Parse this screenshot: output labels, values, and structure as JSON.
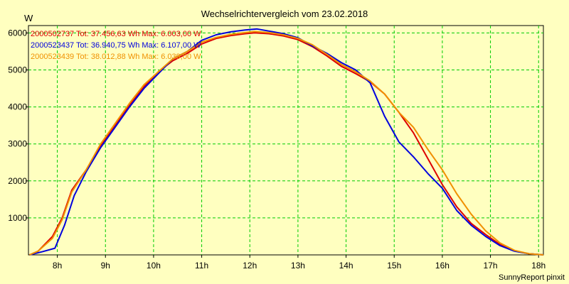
{
  "chart_data": {
    "type": "line",
    "title": "Wechselrichtervergleich vom 23.02.2018",
    "ylabel": "W",
    "xlabel": "",
    "credit": "SunnyReport pinxit",
    "xlim": [
      7.4,
      18.1
    ],
    "ylim": [
      0,
      6200
    ],
    "x_ticks": [
      8,
      9,
      10,
      11,
      12,
      13,
      14,
      15,
      16,
      17,
      18
    ],
    "x_tick_labels": [
      "8h",
      "9h",
      "10h",
      "11h",
      "12h",
      "13h",
      "14h",
      "15h",
      "16h",
      "17h",
      "18h"
    ],
    "y_ticks": [
      1000,
      2000,
      3000,
      4000,
      5000,
      6000
    ],
    "y_tick_labels": [
      "1000",
      "2000",
      "3000",
      "4000",
      "5000",
      "6000"
    ],
    "grid": true,
    "legend_position": "top-left",
    "colors": {
      "background": "#ffffc0",
      "grid": "#00cc00",
      "axis": "#000000"
    },
    "series": [
      {
        "name": "2000502737 Tot: 37.456,63 Wh Max: 6.003,00 W",
        "color": "#dd0000",
        "x": [
          7.42,
          7.6,
          7.9,
          8.1,
          8.3,
          8.6,
          8.9,
          9.2,
          9.5,
          9.8,
          10.1,
          10.4,
          10.7,
          11.0,
          11.3,
          11.6,
          11.9,
          12.1,
          12.4,
          12.7,
          13.0,
          13.3,
          13.6,
          13.9,
          14.2,
          14.5,
          14.8,
          15.1,
          15.4,
          15.7,
          16.0,
          16.3,
          16.6,
          16.9,
          17.2,
          17.5,
          17.8,
          18.1
        ],
        "y": [
          0,
          100,
          500,
          1000,
          1750,
          2300,
          2950,
          3500,
          4050,
          4550,
          4950,
          5250,
          5450,
          5700,
          5850,
          5930,
          5980,
          6003,
          5980,
          5920,
          5820,
          5630,
          5380,
          5100,
          4900,
          4680,
          4350,
          3850,
          3300,
          2600,
          1900,
          1300,
          850,
          550,
          280,
          110,
          30,
          0
        ]
      },
      {
        "name": "2000523437 Tot: 36.940,75 Wh Max: 6.107,00 W",
        "color": "#0000dd",
        "x": [
          7.42,
          7.7,
          7.95,
          8.15,
          8.35,
          8.6,
          8.9,
          9.2,
          9.5,
          9.8,
          10.1,
          10.4,
          10.7,
          11.0,
          11.3,
          11.6,
          11.9,
          12.15,
          12.4,
          12.7,
          13.0,
          13.3,
          13.6,
          13.9,
          14.2,
          14.5,
          14.8,
          15.1,
          15.4,
          15.7,
          16.0,
          16.3,
          16.6,
          16.9,
          17.2,
          17.5,
          17.8,
          18.1
        ],
        "y": [
          0,
          90,
          180,
          800,
          1600,
          2250,
          2900,
          3450,
          4000,
          4500,
          4900,
          5300,
          5500,
          5800,
          5950,
          6030,
          6080,
          6107,
          6050,
          5980,
          5870,
          5650,
          5450,
          5200,
          5000,
          4650,
          3750,
          3050,
          2650,
          2200,
          1800,
          1200,
          800,
          500,
          250,
          100,
          30,
          0
        ]
      },
      {
        "name": "2000523439 Tot: 38.012,88 Wh Max: 6.039,00 W",
        "color": "#f09000",
        "x": [
          7.42,
          7.6,
          7.9,
          8.1,
          8.3,
          8.6,
          8.9,
          9.2,
          9.5,
          9.8,
          10.1,
          10.4,
          10.7,
          11.0,
          11.3,
          11.6,
          11.9,
          12.1,
          12.4,
          12.7,
          13.0,
          13.3,
          13.6,
          13.9,
          14.2,
          14.5,
          14.8,
          15.1,
          15.4,
          15.7,
          16.0,
          16.3,
          16.6,
          16.9,
          17.2,
          17.5,
          17.8,
          18.1
        ],
        "y": [
          0,
          100,
          450,
          950,
          1700,
          2300,
          3000,
          3550,
          4100,
          4600,
          4950,
          5300,
          5500,
          5750,
          5880,
          5960,
          6010,
          6039,
          6010,
          5950,
          5850,
          5680,
          5420,
          5150,
          4950,
          4700,
          4350,
          3850,
          3450,
          2850,
          2300,
          1650,
          1100,
          650,
          320,
          120,
          30,
          0
        ]
      }
    ]
  }
}
